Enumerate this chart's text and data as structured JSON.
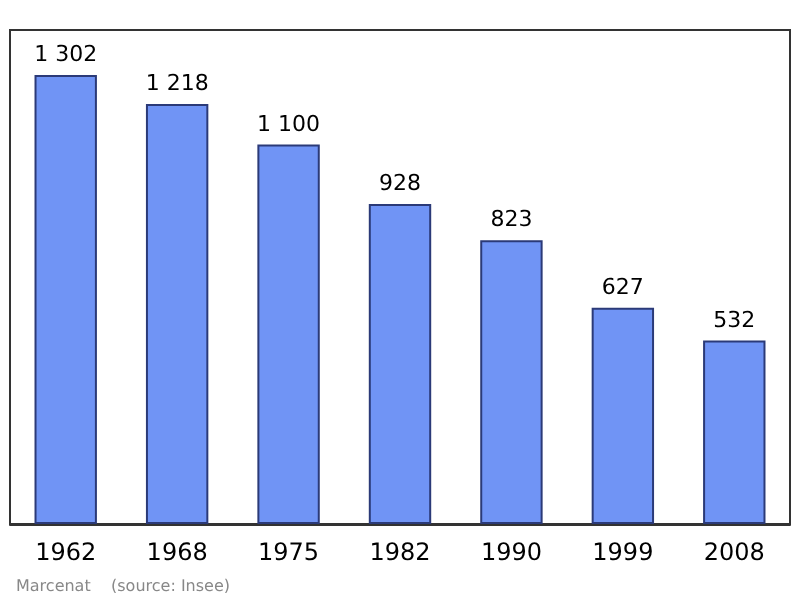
{
  "chart_data": {
    "type": "bar",
    "categories": [
      "1962",
      "1968",
      "1975",
      "1982",
      "1990",
      "1999",
      "2008"
    ],
    "values": [
      1302,
      1218,
      1100,
      928,
      823,
      627,
      532
    ],
    "value_labels": [
      "1 302",
      "1 218",
      "1 100",
      "928",
      "823",
      "627",
      "532"
    ],
    "color": "#7094f5",
    "annotations": [
      "Marcenat    (source: Insee)"
    ]
  }
}
